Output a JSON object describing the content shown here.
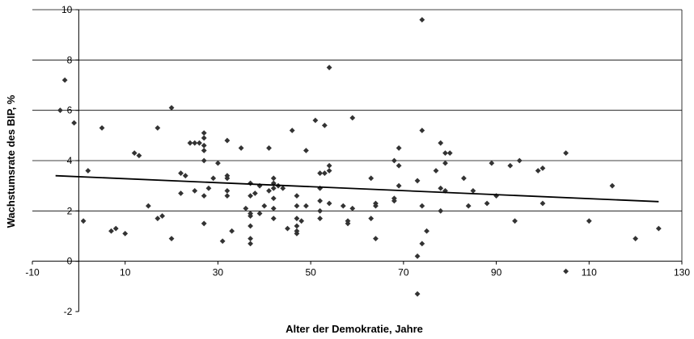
{
  "chart_data": {
    "type": "scatter",
    "title": "",
    "xlabel": "Alter der Demokratie, Jahre",
    "ylabel": "Wachstumsrate des BIP, %",
    "xlim": [
      -10,
      130
    ],
    "ylim": [
      -2,
      10
    ],
    "x_ticks": [
      -10,
      10,
      30,
      50,
      70,
      90,
      110,
      130
    ],
    "y_ticks": [
      -2,
      0,
      2,
      4,
      6,
      8,
      10
    ],
    "grid": "horizontal",
    "legend": "none",
    "marker_color": "#333333",
    "trendline": {
      "x": [
        -5,
        125
      ],
      "y": [
        3.4,
        2.37
      ],
      "color": "#000000"
    },
    "points": [
      {
        "x": -4,
        "y": 6.0
      },
      {
        "x": -3,
        "y": 7.2
      },
      {
        "x": -1,
        "y": 5.5
      },
      {
        "x": 1,
        "y": 1.6
      },
      {
        "x": 2,
        "y": 3.6
      },
      {
        "x": 5,
        "y": 5.3
      },
      {
        "x": 7,
        "y": 1.2
      },
      {
        "x": 8,
        "y": 1.3
      },
      {
        "x": 10,
        "y": 1.1
      },
      {
        "x": 12,
        "y": 4.3
      },
      {
        "x": 13,
        "y": 4.2
      },
      {
        "x": 15,
        "y": 2.2
      },
      {
        "x": 17,
        "y": 5.3
      },
      {
        "x": 17,
        "y": 1.7
      },
      {
        "x": 18,
        "y": 1.8
      },
      {
        "x": 20,
        "y": 6.1
      },
      {
        "x": 20,
        "y": 0.9
      },
      {
        "x": 22,
        "y": 3.5
      },
      {
        "x": 22,
        "y": 2.7
      },
      {
        "x": 23,
        "y": 3.4
      },
      {
        "x": 24,
        "y": 4.7
      },
      {
        "x": 25,
        "y": 4.7
      },
      {
        "x": 25,
        "y": 2.8
      },
      {
        "x": 26,
        "y": 4.7
      },
      {
        "x": 27,
        "y": 5.1
      },
      {
        "x": 27,
        "y": 4.9
      },
      {
        "x": 27,
        "y": 4.6
      },
      {
        "x": 27,
        "y": 4.4
      },
      {
        "x": 27,
        "y": 4.0
      },
      {
        "x": 27,
        "y": 2.6
      },
      {
        "x": 27,
        "y": 1.5
      },
      {
        "x": 28,
        "y": 2.9
      },
      {
        "x": 29,
        "y": 3.3
      },
      {
        "x": 30,
        "y": 3.9
      },
      {
        "x": 31,
        "y": 0.8
      },
      {
        "x": 32,
        "y": 4.8
      },
      {
        "x": 32,
        "y": 3.4
      },
      {
        "x": 32,
        "y": 3.3
      },
      {
        "x": 32,
        "y": 2.8
      },
      {
        "x": 32,
        "y": 2.6
      },
      {
        "x": 33,
        "y": 1.2
      },
      {
        "x": 35,
        "y": 4.5
      },
      {
        "x": 36,
        "y": 2.1
      },
      {
        "x": 37,
        "y": 3.1
      },
      {
        "x": 37,
        "y": 2.6
      },
      {
        "x": 37,
        "y": 1.9
      },
      {
        "x": 37,
        "y": 1.8
      },
      {
        "x": 37,
        "y": 1.4
      },
      {
        "x": 37,
        "y": 0.9
      },
      {
        "x": 37,
        "y": 0.7
      },
      {
        "x": 38,
        "y": 2.7
      },
      {
        "x": 39,
        "y": 3.0
      },
      {
        "x": 39,
        "y": 1.9
      },
      {
        "x": 40,
        "y": 2.2
      },
      {
        "x": 41,
        "y": 4.5
      },
      {
        "x": 41,
        "y": 2.8
      },
      {
        "x": 42,
        "y": 3.3
      },
      {
        "x": 42,
        "y": 3.1
      },
      {
        "x": 42,
        "y": 2.9
      },
      {
        "x": 42,
        "y": 2.5
      },
      {
        "x": 42,
        "y": 2.1
      },
      {
        "x": 42,
        "y": 1.7
      },
      {
        "x": 43,
        "y": 3.0
      },
      {
        "x": 44,
        "y": 2.9
      },
      {
        "x": 45,
        "y": 1.3
      },
      {
        "x": 46,
        "y": 5.2
      },
      {
        "x": 47,
        "y": 2.6
      },
      {
        "x": 47,
        "y": 2.2
      },
      {
        "x": 47,
        "y": 1.7
      },
      {
        "x": 47,
        "y": 1.4
      },
      {
        "x": 47,
        "y": 1.2
      },
      {
        "x": 47,
        "y": 1.1
      },
      {
        "x": 48,
        "y": 1.6
      },
      {
        "x": 49,
        "y": 4.4
      },
      {
        "x": 49,
        "y": 2.2
      },
      {
        "x": 51,
        "y": 5.6
      },
      {
        "x": 52,
        "y": 3.5
      },
      {
        "x": 52,
        "y": 2.9
      },
      {
        "x": 52,
        "y": 2.4
      },
      {
        "x": 52,
        "y": 2.0
      },
      {
        "x": 52,
        "y": 1.7
      },
      {
        "x": 53,
        "y": 5.4
      },
      {
        "x": 53,
        "y": 3.5
      },
      {
        "x": 54,
        "y": 7.7
      },
      {
        "x": 54,
        "y": 3.8
      },
      {
        "x": 54,
        "y": 3.6
      },
      {
        "x": 54,
        "y": 2.3
      },
      {
        "x": 57,
        "y": 2.2
      },
      {
        "x": 58,
        "y": 1.5
      },
      {
        "x": 58,
        "y": 1.6
      },
      {
        "x": 59,
        "y": 5.7
      },
      {
        "x": 59,
        "y": 2.1
      },
      {
        "x": 63,
        "y": 3.3
      },
      {
        "x": 63,
        "y": 1.7
      },
      {
        "x": 64,
        "y": 2.3
      },
      {
        "x": 64,
        "y": 2.2
      },
      {
        "x": 64,
        "y": 0.9
      },
      {
        "x": 68,
        "y": 4.0
      },
      {
        "x": 68,
        "y": 2.5
      },
      {
        "x": 68,
        "y": 2.4
      },
      {
        "x": 69,
        "y": 4.5
      },
      {
        "x": 69,
        "y": 3.8
      },
      {
        "x": 69,
        "y": 3.0
      },
      {
        "x": 73,
        "y": 3.2
      },
      {
        "x": 73,
        "y": 0.2
      },
      {
        "x": 73,
        "y": -1.3
      },
      {
        "x": 74,
        "y": 9.6
      },
      {
        "x": 74,
        "y": 5.2
      },
      {
        "x": 74,
        "y": 2.2
      },
      {
        "x": 74,
        "y": 0.7
      },
      {
        "x": 75,
        "y": 1.2
      },
      {
        "x": 77,
        "y": 3.6
      },
      {
        "x": 78,
        "y": 4.7
      },
      {
        "x": 78,
        "y": 2.9
      },
      {
        "x": 78,
        "y": 2.0
      },
      {
        "x": 79,
        "y": 4.3
      },
      {
        "x": 79,
        "y": 3.9
      },
      {
        "x": 79,
        "y": 2.8
      },
      {
        "x": 80,
        "y": 4.3
      },
      {
        "x": 83,
        "y": 3.3
      },
      {
        "x": 84,
        "y": 2.2
      },
      {
        "x": 85,
        "y": 2.8
      },
      {
        "x": 88,
        "y": 2.3
      },
      {
        "x": 89,
        "y": 3.9
      },
      {
        "x": 90,
        "y": 2.6
      },
      {
        "x": 93,
        "y": 3.8
      },
      {
        "x": 94,
        "y": 1.6
      },
      {
        "x": 95,
        "y": 4.0
      },
      {
        "x": 99,
        "y": 3.6
      },
      {
        "x": 100,
        "y": 3.7
      },
      {
        "x": 100,
        "y": 2.3
      },
      {
        "x": 105,
        "y": 4.3
      },
      {
        "x": 105,
        "y": -0.4
      },
      {
        "x": 110,
        "y": 1.6
      },
      {
        "x": 115,
        "y": 3.0
      },
      {
        "x": 120,
        "y": 0.9
      },
      {
        "x": 125,
        "y": 1.3
      }
    ]
  }
}
